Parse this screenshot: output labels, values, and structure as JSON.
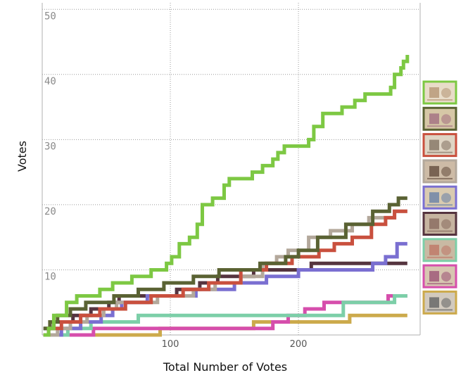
{
  "chart_data": {
    "type": "line",
    "title": "",
    "xlabel": "Total Number of Votes",
    "ylabel": "Votes",
    "xlim": [
      0,
      295
    ],
    "ylim": [
      0,
      51
    ],
    "x_ticks": [
      100,
      200
    ],
    "y_ticks": [
      10,
      20,
      30,
      40,
      50
    ],
    "grid": true,
    "legend": "right, thumbnail images",
    "series": [
      {
        "color": "#7dc843",
        "thumb": {
          "bg": "#e8dcc8",
          "art": "#b89a7a"
        },
        "points": [
          [
            1,
            0
          ],
          [
            5,
            1
          ],
          [
            9,
            3
          ],
          [
            19,
            5
          ],
          [
            27,
            6
          ],
          [
            45,
            7
          ],
          [
            55,
            8
          ],
          [
            70,
            9
          ],
          [
            85,
            10
          ],
          [
            97,
            11
          ],
          [
            101,
            12
          ],
          [
            107,
            14
          ],
          [
            115,
            15
          ],
          [
            121,
            17
          ],
          [
            125,
            20
          ],
          [
            133,
            21
          ],
          [
            142,
            23
          ],
          [
            146,
            24
          ],
          [
            164,
            25
          ],
          [
            172,
            26
          ],
          [
            180,
            27
          ],
          [
            184,
            28
          ],
          [
            189,
            29
          ],
          [
            208,
            30
          ],
          [
            212,
            32
          ],
          [
            219,
            34
          ],
          [
            234,
            35
          ],
          [
            244,
            36
          ],
          [
            252,
            37
          ],
          [
            272,
            38
          ],
          [
            275,
            40
          ],
          [
            280,
            41
          ],
          [
            282,
            42
          ],
          [
            285,
            43
          ]
        ]
      },
      {
        "color": "#5a6233",
        "thumb": {
          "bg": "#d6c7a6",
          "art": "#a67484"
        },
        "points": [
          [
            1,
            1
          ],
          [
            6,
            2
          ],
          [
            12,
            3
          ],
          [
            22,
            4
          ],
          [
            34,
            5
          ],
          [
            56,
            6
          ],
          [
            75,
            7
          ],
          [
            95,
            8
          ],
          [
            118,
            9
          ],
          [
            138,
            10
          ],
          [
            170,
            11
          ],
          [
            190,
            12
          ],
          [
            200,
            13
          ],
          [
            215,
            15
          ],
          [
            237,
            17
          ],
          [
            258,
            19
          ],
          [
            271,
            20
          ],
          [
            278,
            21
          ],
          [
            285,
            21
          ]
        ]
      },
      {
        "color": "#c9503e",
        "thumb": {
          "bg": "#dfd5c4",
          "art": "#8a7a6a"
        },
        "points": [
          [
            1,
            0
          ],
          [
            5,
            1
          ],
          [
            15,
            2
          ],
          [
            30,
            3
          ],
          [
            45,
            4
          ],
          [
            65,
            5
          ],
          [
            85,
            6
          ],
          [
            110,
            7
          ],
          [
            130,
            8
          ],
          [
            155,
            10
          ],
          [
            175,
            11
          ],
          [
            195,
            12
          ],
          [
            216,
            13
          ],
          [
            228,
            14
          ],
          [
            242,
            15
          ],
          [
            257,
            17
          ],
          [
            268,
            18
          ],
          [
            275,
            19
          ],
          [
            285,
            19
          ]
        ]
      },
      {
        "color": "#b3a89b",
        "thumb": {
          "bg": "#cdbba6",
          "art": "#6a5444"
        },
        "points": [
          [
            1,
            0
          ],
          [
            12,
            1
          ],
          [
            22,
            2
          ],
          [
            35,
            3
          ],
          [
            48,
            4
          ],
          [
            58,
            5
          ],
          [
            90,
            6
          ],
          [
            118,
            7
          ],
          [
            135,
            8
          ],
          [
            155,
            9
          ],
          [
            172,
            11
          ],
          [
            183,
            12
          ],
          [
            192,
            13
          ],
          [
            208,
            15
          ],
          [
            225,
            16
          ],
          [
            242,
            17
          ],
          [
            255,
            18
          ],
          [
            275,
            19
          ],
          [
            285,
            19
          ]
        ]
      },
      {
        "color": "#7a6fd1",
        "thumb": {
          "bg": "#d9cbb0",
          "art": "#6e86a8"
        },
        "points": [
          [
            1,
            0
          ],
          [
            15,
            1
          ],
          [
            30,
            2
          ],
          [
            46,
            3
          ],
          [
            55,
            4
          ],
          [
            62,
            5
          ],
          [
            82,
            6
          ],
          [
            120,
            7
          ],
          [
            150,
            8
          ],
          [
            175,
            9
          ],
          [
            200,
            10
          ],
          [
            258,
            11
          ],
          [
            268,
            12
          ],
          [
            277,
            14
          ],
          [
            285,
            14
          ]
        ]
      },
      {
        "color": "#55343f",
        "thumb": {
          "bg": "#c6b4a0",
          "art": "#8c6f63"
        },
        "points": [
          [
            1,
            1
          ],
          [
            9,
            2
          ],
          [
            24,
            3
          ],
          [
            38,
            4
          ],
          [
            52,
            5
          ],
          [
            60,
            6
          ],
          [
            105,
            7
          ],
          [
            123,
            8
          ],
          [
            137,
            9
          ],
          [
            165,
            10
          ],
          [
            210,
            11
          ],
          [
            285,
            11
          ]
        ]
      },
      {
        "color": "#7ccfa8",
        "thumb": {
          "bg": "#c9b9a3",
          "art": "#c07a6a"
        },
        "points": [
          [
            1,
            0
          ],
          [
            20,
            1
          ],
          [
            38,
            2
          ],
          [
            75,
            3
          ],
          [
            235,
            5
          ],
          [
            275,
            6
          ],
          [
            285,
            6
          ]
        ]
      },
      {
        "color": "#d64eac",
        "thumb": {
          "bg": "#d7c6b1",
          "art": "#a05a7a"
        },
        "points": [
          [
            1,
            0
          ],
          [
            40,
            1
          ],
          [
            180,
            2
          ],
          [
            192,
            3
          ],
          [
            205,
            4
          ],
          [
            220,
            5
          ],
          [
            270,
            6
          ],
          [
            285,
            6
          ]
        ]
      },
      {
        "color": "#ccaa4c",
        "thumb": {
          "bg": "#d2cabe",
          "art": "#6a6a6a"
        },
        "points": [
          [
            1,
            0
          ],
          [
            92,
            1
          ],
          [
            165,
            2
          ],
          [
            240,
            3
          ],
          [
            262,
            3
          ],
          [
            285,
            3
          ]
        ]
      }
    ]
  }
}
